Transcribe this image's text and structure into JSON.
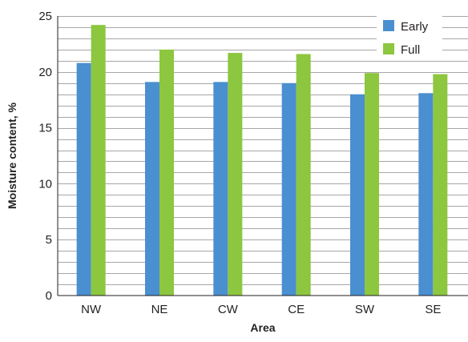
{
  "chart_data": {
    "type": "bar",
    "title": "",
    "xlabel": "Area",
    "ylabel": "Moisture content, %",
    "categories": [
      "NW",
      "NE",
      "CW",
      "CE",
      "SW",
      "SE"
    ],
    "series": [
      {
        "name": "Early",
        "color": "#4a8fd0",
        "values": [
          20.8,
          19.1,
          19.1,
          19.0,
          18.0,
          18.1
        ]
      },
      {
        "name": "Full",
        "color": "#8dc63f",
        "values": [
          24.2,
          22.0,
          21.7,
          21.6,
          19.9,
          19.8
        ]
      }
    ],
    "ylim": [
      0,
      25
    ],
    "yticks": [
      0,
      5,
      10,
      15,
      20,
      25
    ],
    "minor_gridline_step": 1,
    "grid": true,
    "legend_position": "top-right"
  }
}
